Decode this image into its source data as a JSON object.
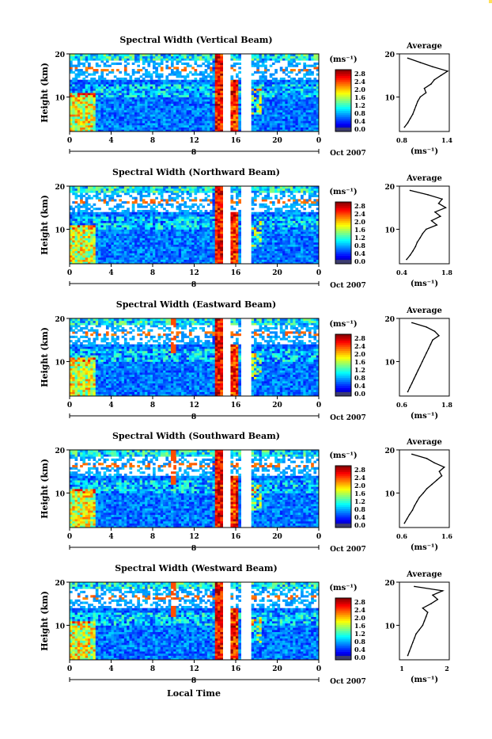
{
  "accent_color": "#ffe05a",
  "figure": {
    "xlabel": "Local Time",
    "date_label": "Oct 2007",
    "ylabel": "Height (km)",
    "colorbar_unit": "(ms⁻¹)",
    "average_title": "Average",
    "average_xlabel": "(ms⁻¹)",
    "day_label": "8"
  },
  "chart_data": [
    {
      "type": "heatmap",
      "title": "Spectral Width (Vertical Beam)",
      "x": [
        0,
        4,
        8,
        12,
        16,
        20,
        0
      ],
      "xlim": [
        0,
        24
      ],
      "ylim": [
        2,
        20
      ],
      "yticks": [
        10,
        20
      ],
      "colorbar_ticks": [
        "2.8",
        "2.4",
        "2.0",
        "1.6",
        "1.2",
        "0.8",
        "0.4",
        "0.0"
      ],
      "colorbar_range": [
        0.0,
        3.0
      ],
      "data_gaps_hours": [
        [
          14.8,
          15.4
        ],
        [
          16.6,
          17.4
        ]
      ],
      "average_profile": {
        "xlim": [
          0.8,
          1.4
        ],
        "xticks": [
          "0.8",
          "1.4"
        ],
        "yticks": [
          10,
          20
        ],
        "height_km": [
          3,
          4,
          5,
          6,
          7,
          8,
          9,
          10,
          11,
          12,
          13,
          14,
          15,
          16,
          17,
          18,
          19
        ],
        "width": [
          0.86,
          0.9,
          0.93,
          0.96,
          0.98,
          1.0,
          1.02,
          1.05,
          1.12,
          1.1,
          1.18,
          1.22,
          1.3,
          1.38,
          1.2,
          1.05,
          0.9
        ]
      }
    },
    {
      "type": "heatmap",
      "title": "Spectral Width (Northward Beam)",
      "x": [
        0,
        4,
        8,
        12,
        16,
        20,
        0
      ],
      "xlim": [
        0,
        24
      ],
      "ylim": [
        2,
        20
      ],
      "yticks": [
        10,
        20
      ],
      "colorbar_ticks": [
        "2.8",
        "2.4",
        "2.0",
        "1.6",
        "1.2",
        "0.8",
        "0.4",
        "0.0"
      ],
      "colorbar_range": [
        0.0,
        3.0
      ],
      "data_gaps_hours": [
        [
          14.8,
          15.4
        ],
        [
          16.6,
          17.4
        ]
      ],
      "average_profile": {
        "xlim": [
          0.4,
          1.8
        ],
        "xticks": [
          "0.4",
          "1.8"
        ],
        "yticks": [
          10,
          20
        ],
        "height_km": [
          3,
          4,
          5,
          6,
          7,
          8,
          9,
          10,
          11,
          12,
          13,
          14,
          15,
          16,
          17,
          18,
          19
        ],
        "width": [
          0.6,
          0.7,
          0.78,
          0.85,
          0.9,
          0.98,
          1.05,
          1.15,
          1.45,
          1.3,
          1.55,
          1.4,
          1.7,
          1.5,
          1.6,
          1.2,
          0.7
        ]
      }
    },
    {
      "type": "heatmap",
      "title": "Spectral Width (Eastward Beam)",
      "x": [
        0,
        4,
        8,
        12,
        16,
        20,
        0
      ],
      "xlim": [
        0,
        24
      ],
      "ylim": [
        2,
        20
      ],
      "yticks": [
        10,
        20
      ],
      "colorbar_ticks": [
        "2.8",
        "2.4",
        "2.0",
        "1.6",
        "1.2",
        "0.8",
        "0.4",
        "0.0"
      ],
      "colorbar_range": [
        0.0,
        3.0
      ],
      "data_gaps_hours": [
        [
          14.8,
          15.4
        ],
        [
          16.6,
          17.4
        ]
      ],
      "average_profile": {
        "xlim": [
          0.6,
          1.8
        ],
        "xticks": [
          "0.6",
          "1.8"
        ],
        "yticks": [
          10,
          20
        ],
        "height_km": [
          3,
          4,
          5,
          6,
          7,
          8,
          9,
          10,
          11,
          12,
          13,
          14,
          15,
          16,
          17,
          18,
          19
        ],
        "width": [
          0.8,
          0.85,
          0.9,
          0.95,
          1.0,
          1.05,
          1.1,
          1.15,
          1.2,
          1.25,
          1.3,
          1.35,
          1.4,
          1.55,
          1.45,
          1.25,
          0.9
        ]
      }
    },
    {
      "type": "heatmap",
      "title": "Spectral Width (Southward Beam)",
      "x": [
        0,
        4,
        8,
        12,
        16,
        20,
        0
      ],
      "xlim": [
        0,
        24
      ],
      "ylim": [
        2,
        20
      ],
      "yticks": [
        10,
        20
      ],
      "colorbar_ticks": [
        "2.8",
        "2.4",
        "2.0",
        "1.6",
        "1.2",
        "0.8",
        "0.4",
        "0.0"
      ],
      "colorbar_range": [
        0.0,
        3.0
      ],
      "data_gaps_hours": [
        [
          14.8,
          15.4
        ],
        [
          16.6,
          17.4
        ]
      ],
      "average_profile": {
        "xlim": [
          0.6,
          1.6
        ],
        "xticks": [
          "0.6",
          "1.6"
        ],
        "yticks": [
          10,
          20
        ],
        "height_km": [
          3,
          4,
          5,
          6,
          7,
          8,
          9,
          10,
          11,
          12,
          13,
          14,
          15,
          16,
          17,
          18,
          19
        ],
        "width": [
          0.7,
          0.75,
          0.8,
          0.86,
          0.9,
          0.95,
          1.0,
          1.08,
          1.15,
          1.25,
          1.35,
          1.45,
          1.4,
          1.5,
          1.3,
          1.15,
          0.85
        ]
      }
    },
    {
      "type": "heatmap",
      "title": "Spectral Width (Westward Beam)",
      "x": [
        0,
        4,
        8,
        12,
        16,
        20,
        0
      ],
      "xlim": [
        0,
        24
      ],
      "ylim": [
        2,
        20
      ],
      "yticks": [
        10,
        20
      ],
      "colorbar_ticks": [
        "2.8",
        "2.4",
        "2.0",
        "1.6",
        "1.2",
        "0.8",
        "0.4",
        "0.0"
      ],
      "colorbar_range": [
        0.0,
        3.0
      ],
      "data_gaps_hours": [
        [
          14.8,
          15.4
        ],
        [
          16.6,
          17.4
        ]
      ],
      "average_profile": {
        "xlim": [
          0.5,
          2.0
        ],
        "xticks": [
          "1",
          "2"
        ],
        "yticks": [
          10,
          20
        ],
        "height_km": [
          3,
          4,
          5,
          6,
          7,
          8,
          9,
          10,
          11,
          12,
          13,
          14,
          15,
          16,
          17,
          18,
          19
        ],
        "width": [
          0.75,
          0.8,
          0.85,
          0.9,
          0.95,
          1.0,
          1.1,
          1.2,
          1.25,
          1.3,
          1.35,
          1.2,
          1.45,
          1.65,
          1.5,
          1.8,
          0.95
        ]
      }
    }
  ]
}
